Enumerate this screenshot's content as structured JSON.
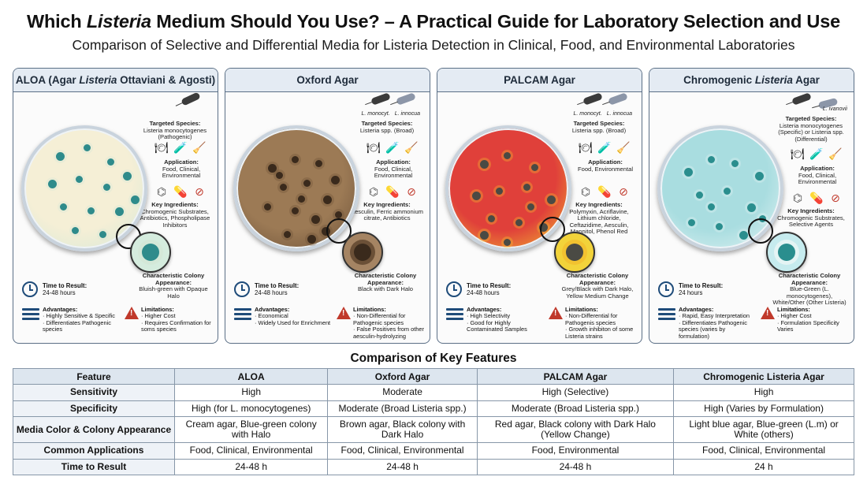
{
  "header": {
    "title_before": "Which ",
    "title_italic": "Listeria",
    "title_after": " Medium Should You Use? – A Practical Guide for Laboratory Selection and Use",
    "subtitle": "Comparison of Selective and Differential Media for Listeria Detection in Clinical, Food, and Environmental Laboratories"
  },
  "panels": [
    {
      "title_a": "ALOA (Agar ",
      "title_i": "Listeria",
      "title_b": " Ottaviani & Agosti)",
      "bacteria_labels": [],
      "species_label": "Targeted Species:",
      "species": "Listeria monocytogenes (Pathogenic)",
      "application_label": "Application:",
      "application": "Food, Clinical, Environmental",
      "ingredients_label": "Key Ingredients:",
      "ingredients": "Chromogenic Substrates, Antibiotics, Phospholipase Inhibitors",
      "colony_label": "Characteristic Colony Appearance:",
      "colony": "Bluish-green with Opaque Halo",
      "time_label": "Time to Result:",
      "time": "24-48 hours",
      "adv_label": "Advantages:",
      "adv": [
        "· Highly Sensitive & Specific",
        "· Differentiates Pathogenic species"
      ],
      "lim_label": "Limitations:",
      "lim": [
        "· Higher Cost",
        "· Requires Confirmation for soms species"
      ],
      "colors": {
        "agar": "#f5efd6",
        "colony": "#2e8b8b",
        "rim": "#d4e8d8",
        "zoom_bg": "#d5ecde"
      }
    },
    {
      "title_a": "Oxford Agar",
      "title_i": "",
      "title_b": "",
      "bacteria_labels": [
        "L. monocyt.",
        "L. innocua"
      ],
      "species_label": "Targeted Species:",
      "species": "Listeria spp. (Broad)",
      "application_label": "Application:",
      "application": "Food, Clinical, Environmental",
      "ingredients_label": "Key Ingredients:",
      "ingredients": "Aesculin, Ferric ammonium citrate, Antibiotics",
      "colony_label": "Characteristic Colony Appearance:",
      "colony": "Black with Dark Halo",
      "time_label": "Time to Result:",
      "time": "24-48 hours",
      "adv_label": "Advantages:",
      "adv": [
        "· Economical",
        "· Widely Used for Enrichment"
      ],
      "lim_label": "Limitations:",
      "lim": [
        "· Non-Differential for Pathogenic species",
        "· False Positives from other aesculin-hydrolyzing"
      ],
      "colors": {
        "agar": "#9c7a55",
        "colony": "#3a2a1c",
        "rim": "#6b5037",
        "zoom_bg": "#a58463"
      }
    },
    {
      "title_a": "PALCAM Agar",
      "title_i": "",
      "title_b": "",
      "bacteria_labels": [
        "L. monocyt.",
        "L. innocua"
      ],
      "species_label": "Targeted Species:",
      "species": "Listeria spp. (Broad)",
      "application_label": "Application:",
      "application": "Food, Environmental",
      "ingredients_label": "Key Ingredients:",
      "ingredients": "Polymyxin, Acriflavine, Lithium chloride, Ceftazidime, Aesculin, Mannitol, Phenol Red",
      "colony_label": "Characteristic Colony Appearance:",
      "colony": "Grey/Black with Dark Halo, Yellow Medium Change",
      "time_label": "Time to Result:",
      "time": "24-48 hours",
      "adv_label": "Advantages:",
      "adv": [
        "· High Selectivity",
        "· Good for Highly Contaminated Samples"
      ],
      "lim_label": "Limitations:",
      "lim": [
        "· Non-Differential for Pathogenis species",
        "· Growth inhibiton of some Listeria strains"
      ],
      "colors": {
        "agar": "#e0403a",
        "colony": "#4a4a44",
        "rim": "#f2c230",
        "zoom_bg": "#f2d33a"
      }
    },
    {
      "title_a": "Chromogenic ",
      "title_i": "Listeria",
      "title_b": " Agar",
      "bacteria_labels": [
        "L. ivanovii"
      ],
      "species_label": "Targeted Species:",
      "species": "Listeria monocytogenes (Specific) or Listeria spp. (Differential)",
      "application_label": "Application:",
      "application": "Food, Clinical, Environmental",
      "ingredients_label": "Key Ingredients:",
      "ingredients": "Chromogenic Substrates, Selective Agents",
      "colony_label": "Characteristic Colony Appearance:",
      "colony": "Blue-Green (L. monocytogenes), White/Other (Other Listeria)",
      "time_label": "Time to Result:",
      "time": "24 hours",
      "adv_label": "Advantages:",
      "adv": [
        "· Rapid, Easy Interpretation",
        "· Differentiates Pathogenic species (varies by formulation)"
      ],
      "lim_label": "Limitations:",
      "lim": [
        "· Higher Cost",
        "· Formulation Specificity Varies"
      ],
      "colors": {
        "agar": "#a9dde0",
        "colony": "#2a8e8e",
        "rim": "#e4f4f4",
        "zoom_bg": "#c6ebee"
      }
    }
  ],
  "comparison": {
    "title": "Comparison of Key Features",
    "headers": [
      "Feature",
      "ALOA",
      "Oxford Agar",
      "PALCAM Agar",
      "Chromogenic Listeria Agar"
    ],
    "rows": [
      [
        "Sensitivity",
        "High",
        "Moderate",
        "High (Selective)",
        "High"
      ],
      [
        "Specificity",
        "High (for L. monocytogenes)",
        "Moderate (Broad Listeria spp.)",
        "Moderate (Broad Listeria spp.)",
        "High (Varies by Formulation)"
      ],
      [
        "Media Color & Colony Appearance",
        "Cream agar, Blue-green colony with Halo",
        "Brown agar, Black colony with Dark Halo",
        "Red agar, Black colony with Dark Halo (Yellow Change)",
        "Light blue agar, Blue-green (L.m) or White (others)"
      ],
      [
        "Common Applications",
        "Food, Clinical, Environmental",
        "Food, Clinical, Environmental",
        "Food, Environmental",
        "Food, Clinical, Environmental"
      ],
      [
        "Time to Result",
        "24-48 h",
        "24-48 h",
        "24-48 h",
        "24 h"
      ]
    ]
  },
  "icons": [
    "plate-icon",
    "food-icon",
    "test-tube-icon",
    "swab-icon",
    "molecule-icon",
    "capsule-icon",
    "prohibit-icon",
    "clock-icon",
    "list-icon",
    "warning-icon",
    "bacteria-icon"
  ]
}
